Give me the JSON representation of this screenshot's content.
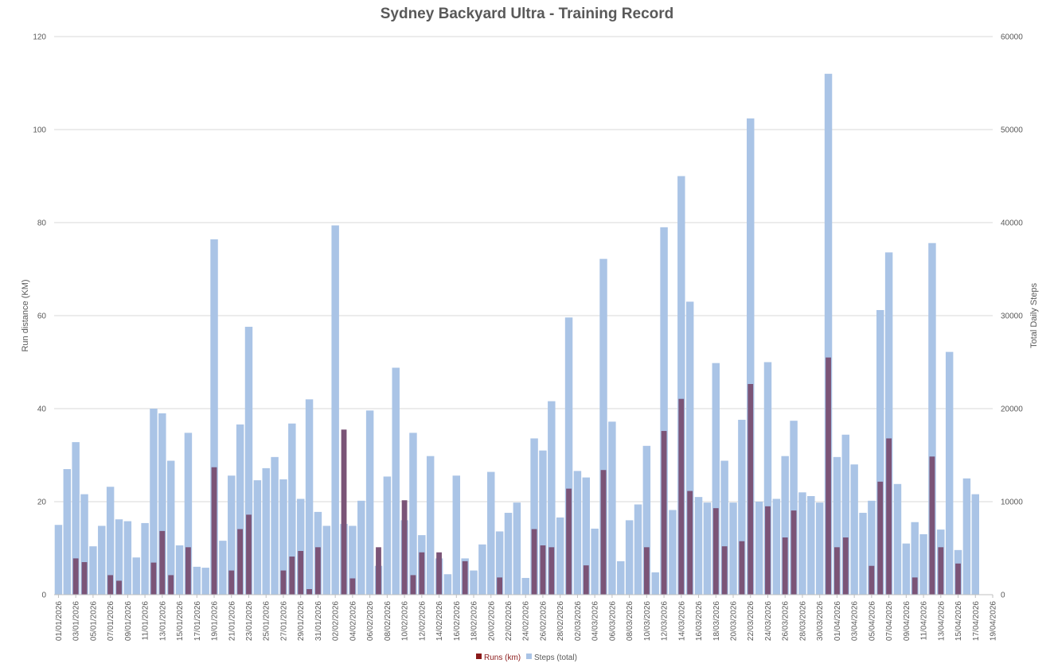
{
  "chart_data": {
    "type": "bar",
    "title": "Sydney Backyard Ultra - Training Record",
    "ylabel": "Run distance  (KM)",
    "y2label": "Total Daily Steps",
    "ylim": [
      0,
      120
    ],
    "y2lim": [
      0,
      60000
    ],
    "yticks": [
      "0",
      "20",
      "40",
      "60",
      "80",
      "100",
      "120"
    ],
    "y2ticks": [
      "0",
      "10000",
      "20000",
      "30000",
      "40000",
      "50000",
      "60000"
    ],
    "x_ticks": [
      "01/01/2026",
      "03/01/2026",
      "05/01/2026",
      "07/01/2026",
      "09/01/2026",
      "11/01/2026",
      "13/01/2026",
      "15/01/2026",
      "17/01/2026",
      "19/01/2026",
      "21/01/2026",
      "23/01/2026",
      "25/01/2026",
      "27/01/2026",
      "29/01/2026",
      "31/01/2026",
      "02/02/2026",
      "04/02/2026",
      "06/02/2026",
      "08/02/2026",
      "10/02/2026",
      "12/02/2026",
      "14/02/2026",
      "16/02/2026",
      "18/02/2026",
      "20/02/2026",
      "22/02/2026",
      "24/02/2026",
      "26/02/2026",
      "28/02/2026",
      "02/03/2026",
      "04/03/2026",
      "06/03/2026",
      "08/03/2026",
      "10/03/2026",
      "12/03/2026",
      "14/03/2026",
      "16/03/2026",
      "18/03/2026",
      "20/03/2026",
      "22/03/2026",
      "24/03/2026",
      "26/03/2026",
      "28/03/2026",
      "30/03/2026",
      "01/04/2026",
      "03/04/2026",
      "05/04/2026",
      "07/04/2026",
      "09/04/2026",
      "11/04/2026",
      "13/04/2026",
      "15/04/2026",
      "17/04/2026",
      "19/04/2026"
    ],
    "start_date": "01/01/2026",
    "end_date": "19/04/2026",
    "steps": [
      7500,
      13500,
      16400,
      10800,
      5200,
      7400,
      11600,
      8100,
      7900,
      4000,
      7700,
      20000,
      19500,
      14400,
      5300,
      17400,
      3000,
      2900,
      38200,
      5800,
      12800,
      18300,
      28800,
      12300,
      13600,
      14800,
      12400,
      18400,
      10300,
      21000,
      8900,
      7400,
      39700,
      7600,
      7400,
      10100,
      19800,
      3100,
      12700,
      24400,
      8000,
      17400,
      6400,
      14900,
      3900,
      2200,
      12800,
      3900,
      2600,
      5400,
      13200,
      6800,
      8800,
      9900,
      1800,
      16800,
      15500,
      20800,
      8300,
      29800,
      13300,
      12600,
      7100,
      36100,
      18600,
      3600,
      8000,
      9700,
      16000,
      2400,
      39500,
      9100,
      45000,
      31500,
      10500,
      9900,
      24900,
      14400,
      9900,
      18800,
      51200,
      10000,
      25000,
      10300,
      14900,
      18700,
      11000,
      10600,
      9900,
      56000,
      14800,
      17200,
      14000,
      8800,
      10100,
      30600,
      36800,
      11900,
      5500,
      7800,
      6500,
      37800,
      7000,
      26100,
      4800,
      12500,
      10800
    ],
    "runs": [
      0,
      0,
      7.8,
      7,
      0,
      0,
      4.2,
      3,
      0,
      0,
      0,
      6.9,
      13.7,
      4.2,
      0,
      10.2,
      0,
      0,
      27.4,
      0,
      5.2,
      14.1,
      17.2,
      0,
      0,
      0,
      5.2,
      8.2,
      9.4,
      1.2,
      10.2,
      0,
      0,
      35.5,
      3.5,
      0,
      0,
      10.2,
      0,
      0,
      20.3,
      4.2,
      9.1,
      0,
      9.1,
      0,
      0,
      7.2,
      0,
      0,
      0,
      3.7,
      0,
      0,
      0,
      14.1,
      10.6,
      10.2,
      0,
      22.8,
      0,
      6.3,
      0,
      26.8,
      0,
      0,
      0,
      0,
      10.2,
      0,
      35.2,
      0,
      42.1,
      22.3,
      0,
      0,
      18.6,
      10.4,
      0,
      11.5,
      45.3,
      0,
      19,
      0,
      12.3,
      18.1,
      0,
      0,
      0,
      51,
      10.2,
      12.3,
      0,
      0,
      6.2,
      24.3,
      33.6,
      0,
      0,
      3.7,
      0,
      29.7,
      10.2,
      0,
      6.7,
      0,
      0
    ],
    "series": [
      {
        "name": "Runs (km)",
        "color": "#8b1a1a",
        "overlay_color": "#7b5477",
        "axis": "left"
      },
      {
        "name": "Steps (total)",
        "color": "#aac4e6",
        "axis": "right"
      }
    ],
    "grid": true,
    "legend_position": "bottom"
  }
}
